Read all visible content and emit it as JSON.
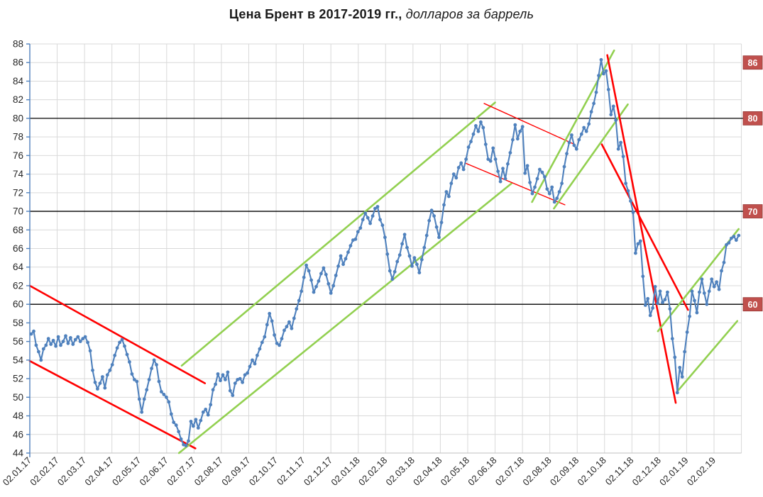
{
  "title": {
    "main": "Цена Брент в 2017-2019 гг.,",
    "subtitle": "долларов за баррель"
  },
  "chart_data": {
    "type": "line",
    "title": "Цена Брент в 2017-2019 гг., долларов за баррель",
    "series_name": "Brent price, USD per barrel",
    "legend": "none",
    "grid": "on",
    "y_axis": {
      "min": 44,
      "max": 88,
      "step": 2
    },
    "x_axis": {
      "labels": [
        "02.01.17",
        "02.02.17",
        "02.03.17",
        "02.04.17",
        "02.05.17",
        "02.06.17",
        "02.07.17",
        "02.08.17",
        "02.09.17",
        "02.10.17",
        "02.11.17",
        "02.12.17",
        "02.01.18",
        "02.02.18",
        "02.03.18",
        "02.04.18",
        "02.05.18",
        "02.06.18",
        "02.07.18",
        "02.08.18",
        "02.09.18",
        "02.10.18",
        "02.11.18",
        "02.12.18",
        "02.01.19",
        "02.02.19"
      ],
      "gridline_intervals": 26,
      "data_span_months": 25.85
    },
    "reference_lines": [
      80,
      70,
      60
    ],
    "price_labels": [
      86,
      80,
      70,
      60
    ],
    "values": [
      56.8,
      57.1,
      55.6,
      54.9,
      54.0,
      55.2,
      55.6,
      56.3,
      55.7,
      56.1,
      55.5,
      56.5,
      55.6,
      56.0,
      56.6,
      55.8,
      56.4,
      55.7,
      56.2,
      56.5,
      56.0,
      56.3,
      56.5,
      55.9,
      55.0,
      52.9,
      51.6,
      50.9,
      51.5,
      52.2,
      51.0,
      52.4,
      52.9,
      53.5,
      54.5,
      55.3,
      55.9,
      56.2,
      55.5,
      54.6,
      53.8,
      52.5,
      51.9,
      51.7,
      49.8,
      48.4,
      49.8,
      50.8,
      51.9,
      53.1,
      54.0,
      53.5,
      51.7,
      50.6,
      50.3,
      50.0,
      49.5,
      48.2,
      47.3,
      47.0,
      46.3,
      45.5,
      44.9,
      44.8,
      45.3,
      47.4,
      46.9,
      47.6,
      46.7,
      47.5,
      48.4,
      48.7,
      48.1,
      49.2,
      50.8,
      51.4,
      52.5,
      51.8,
      52.4,
      51.9,
      52.7,
      50.7,
      50.2,
      51.5,
      51.9,
      52.0,
      51.6,
      52.4,
      52.6,
      53.3,
      54.0,
      53.6,
      54.5,
      55.2,
      55.9,
      56.5,
      57.8,
      59.0,
      58.2,
      56.7,
      55.8,
      55.6,
      56.3,
      57.2,
      57.6,
      58.1,
      57.4,
      58.5,
      59.5,
      60.4,
      61.4,
      62.9,
      64.2,
      63.6,
      62.6,
      61.3,
      61.9,
      62.5,
      63.3,
      63.9,
      63.2,
      62.2,
      61.2,
      62.0,
      63.1,
      64.1,
      65.2,
      64.3,
      64.9,
      65.6,
      66.3,
      66.9,
      67.0,
      67.8,
      68.2,
      69.1,
      69.8,
      69.3,
      68.7,
      69.5,
      70.3,
      70.5,
      69.1,
      68.5,
      67.2,
      65.4,
      63.6,
      62.7,
      63.5,
      64.6,
      65.3,
      66.5,
      67.5,
      66.1,
      65.2,
      64.1,
      65.0,
      64.3,
      63.4,
      64.8,
      66.1,
      67.4,
      69.0,
      70.1,
      69.5,
      68.3,
      67.2,
      68.8,
      70.7,
      72.1,
      71.6,
      73.0,
      74.0,
      73.6,
      74.7,
      75.2,
      74.5,
      75.6,
      76.9,
      77.5,
      78.3,
      79.2,
      78.6,
      79.6,
      79.0,
      77.2,
      75.6,
      75.4,
      76.8,
      75.6,
      74.3,
      73.2,
      74.6,
      73.5,
      75.1,
      76.3,
      77.7,
      79.3,
      77.8,
      78.6,
      79.1,
      74.1,
      74.9,
      73.1,
      71.9,
      72.6,
      73.5,
      74.5,
      74.2,
      73.7,
      72.4,
      71.9,
      72.6,
      71.0,
      71.4,
      72.1,
      73.0,
      74.8,
      76.2,
      77.4,
      78.2,
      77.1,
      76.7,
      77.7,
      78.3,
      79.0,
      78.6,
      79.4,
      80.7,
      81.6,
      82.8,
      84.6,
      86.3,
      84.8,
      85.1,
      83.1,
      80.4,
      81.3,
      79.8,
      76.7,
      77.4,
      75.9,
      73.0,
      72.2,
      71.1,
      69.9,
      65.5,
      66.5,
      66.8,
      63.0,
      59.9,
      60.6,
      58.8,
      59.6,
      61.9,
      60.1,
      61.4,
      60.2,
      60.5,
      61.3,
      59.5,
      56.3,
      54.3,
      50.5,
      53.2,
      52.2,
      54.9,
      57.0,
      58.7,
      61.4,
      60.4,
      59.1,
      61.3,
      62.7,
      61.2,
      60.0,
      61.4,
      62.7,
      61.9,
      62.4,
      61.6,
      63.6,
      64.5,
      66.4,
      66.6,
      67.1,
      67.3,
      66.9,
      67.4
    ],
    "trend_lines": [
      {
        "name": "down-channel-2017-upper",
        "color": "red",
        "width": 2.6,
        "from": [
          0.0,
          62.0
        ],
        "to": [
          6.4,
          51.5
        ]
      },
      {
        "name": "down-channel-2017-lower",
        "color": "red",
        "width": 2.6,
        "from": [
          0.0,
          53.9
        ],
        "to": [
          6.05,
          44.5
        ]
      },
      {
        "name": "up-channel-17-18-upper",
        "color": "green",
        "width": 2.6,
        "from": [
          5.55,
          53.4
        ],
        "to": [
          17.0,
          81.7
        ]
      },
      {
        "name": "up-channel-17-18-lower",
        "color": "green",
        "width": 2.6,
        "from": [
          5.45,
          44.0
        ],
        "to": [
          17.6,
          73.0
        ]
      },
      {
        "name": "flat-channel-2018-upper",
        "color": "red",
        "width": 1.4,
        "from": [
          16.6,
          81.6
        ],
        "to": [
          19.9,
          77.2
        ]
      },
      {
        "name": "flat-channel-2018-lower",
        "color": "red",
        "width": 1.4,
        "from": [
          15.9,
          75.2
        ],
        "to": [
          19.55,
          70.7
        ]
      },
      {
        "name": "steep-up-2018-left",
        "color": "green",
        "width": 2.6,
        "from": [
          18.35,
          71.0
        ],
        "to": [
          21.35,
          87.3
        ]
      },
      {
        "name": "steep-up-2018-right",
        "color": "green",
        "width": 2.6,
        "from": [
          19.15,
          70.3
        ],
        "to": [
          21.85,
          81.5
        ]
      },
      {
        "name": "crash-2018-left",
        "color": "red",
        "width": 2.6,
        "from": [
          21.1,
          86.8
        ],
        "to": [
          23.6,
          49.4
        ]
      },
      {
        "name": "crash-2018-right",
        "color": "red",
        "width": 2.6,
        "from": [
          20.9,
          77.2
        ],
        "to": [
          24.05,
          59.4
        ]
      },
      {
        "name": "recovery-2019-upper",
        "color": "green",
        "width": 2.6,
        "from": [
          22.95,
          57.1
        ],
        "to": [
          25.9,
          68.1
        ]
      },
      {
        "name": "recovery-2019-lower",
        "color": "green",
        "width": 2.6,
        "from": [
          23.65,
          50.6
        ],
        "to": [
          25.85,
          58.2
        ]
      }
    ],
    "colors": {
      "series": "#4F81BD",
      "axis": "#4F81BD",
      "grid": "#D9D9D9",
      "axis_line_bottom": "#BFBFBF",
      "reference_line": "#000000",
      "trend_red": "#FF0000",
      "trend_green": "#92D050",
      "price_label_bg": "#C0504D",
      "price_label_border": "#963634",
      "price_label_text": "#FFFFFF",
      "tick_text": "#262626"
    }
  }
}
